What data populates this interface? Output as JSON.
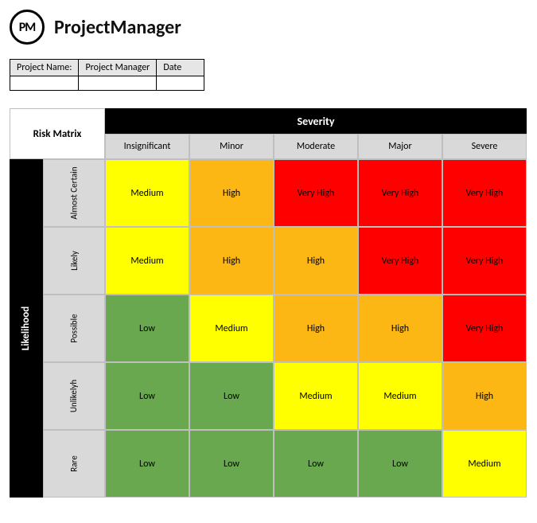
{
  "brand": {
    "logo_text": "PM",
    "name": "ProjectManager"
  },
  "info": {
    "headers": [
      "Project Name:",
      "Project Manager",
      "Date"
    ],
    "values": [
      "",
      "",
      ""
    ]
  },
  "matrix": {
    "title": "Risk Matrix",
    "severity_label": "Severity",
    "likelihood_label": "Likelihood",
    "severity_levels": [
      "Insignificant",
      "Minor",
      "Moderate",
      "Major",
      "Severe"
    ],
    "likelihood_levels": [
      "Almost Certain",
      "Likely",
      "Possible",
      "Unlikelyh",
      "Rare"
    ],
    "cells": [
      [
        {
          "label": "Medium",
          "color": "#ffff00"
        },
        {
          "label": "High",
          "color": "#fdb714"
        },
        {
          "label": "Very High",
          "color": "#ff0000"
        },
        {
          "label": "Very High",
          "color": "#ff0000"
        },
        {
          "label": "Very High",
          "color": "#ff0000"
        }
      ],
      [
        {
          "label": "Medium",
          "color": "#ffff00"
        },
        {
          "label": "High",
          "color": "#fdb714"
        },
        {
          "label": "High",
          "color": "#fdb714"
        },
        {
          "label": "Very High",
          "color": "#ff0000"
        },
        {
          "label": "Very High",
          "color": "#ff0000"
        }
      ],
      [
        {
          "label": "Low",
          "color": "#6aa84f"
        },
        {
          "label": "Medium",
          "color": "#ffff00"
        },
        {
          "label": "High",
          "color": "#fdb714"
        },
        {
          "label": "High",
          "color": "#fdb714"
        },
        {
          "label": "Very High",
          "color": "#ff0000"
        }
      ],
      [
        {
          "label": "Low",
          "color": "#6aa84f"
        },
        {
          "label": "Low",
          "color": "#6aa84f"
        },
        {
          "label": "Medium",
          "color": "#ffff00"
        },
        {
          "label": "Medium",
          "color": "#ffff00"
        },
        {
          "label": "High",
          "color": "#fdb714"
        }
      ],
      [
        {
          "label": "Low",
          "color": "#6aa84f"
        },
        {
          "label": "Low",
          "color": "#6aa84f"
        },
        {
          "label": "Low",
          "color": "#6aa84f"
        },
        {
          "label": "Low",
          "color": "#6aa84f"
        },
        {
          "label": "Medium",
          "color": "#ffff00"
        }
      ]
    ],
    "colors": {
      "header_bg": "#d9d9d9",
      "border": "#bfbfbf",
      "black": "#000000"
    }
  }
}
